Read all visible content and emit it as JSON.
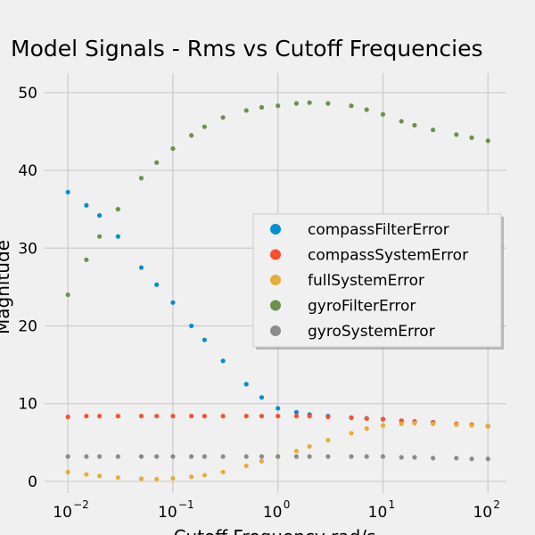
{
  "chart_data": {
    "type": "scatter",
    "title": "Model Signals - Rms vs Cutoff Frequencies",
    "xlabel": "Cutoff Frequency rad/s",
    "ylabel": "Magnitude",
    "x_scale": "log",
    "xlim": [
      0.006,
      150
    ],
    "ylim": [
      -1.5,
      52.5
    ],
    "x_ticks": [
      {
        "value": 0.01,
        "mantissa": "10",
        "exponent": "−2"
      },
      {
        "value": 0.1,
        "mantissa": "10",
        "exponent": "−1"
      },
      {
        "value": 1,
        "mantissa": "10",
        "exponent": "0"
      },
      {
        "value": 10,
        "mantissa": "10",
        "exponent": "1"
      },
      {
        "value": 100,
        "mantissa": "10",
        "exponent": "2"
      }
    ],
    "y_ticks": [
      "0",
      "10",
      "20",
      "30",
      "40",
      "50"
    ],
    "grid": true,
    "legend": "center-right",
    "series": [
      {
        "name": "compassFilterError",
        "color": "#008fd5",
        "x": [
          0.01,
          0.015,
          0.02,
          0.03,
          0.05,
          0.07,
          0.1,
          0.15,
          0.2,
          0.3,
          0.5,
          0.7,
          1,
          1.5,
          2,
          3,
          5,
          7,
          10,
          15,
          20,
          30,
          50,
          70,
          100
        ],
        "y": [
          37.2,
          35.5,
          34.2,
          31.5,
          27.5,
          25.3,
          23.0,
          20.0,
          18.2,
          15.5,
          12.5,
          10.8,
          9.4,
          8.9,
          8.6,
          8.4,
          8.2,
          8.1,
          8.0,
          7.8,
          7.7,
          7.6,
          7.4,
          7.3,
          7.1
        ]
      },
      {
        "name": "compassSystemError",
        "color": "#fc4f30",
        "x": [
          0.01,
          0.015,
          0.02,
          0.03,
          0.05,
          0.07,
          0.1,
          0.15,
          0.2,
          0.3,
          0.5,
          0.7,
          1,
          1.5,
          2,
          3,
          5,
          7,
          10,
          15,
          20,
          30,
          50,
          70,
          100
        ],
        "y": [
          8.3,
          8.4,
          8.4,
          8.4,
          8.4,
          8.4,
          8.4,
          8.4,
          8.4,
          8.4,
          8.4,
          8.4,
          8.4,
          8.4,
          8.4,
          8.3,
          8.2,
          8.1,
          8.0,
          7.8,
          7.7,
          7.6,
          7.4,
          7.3,
          7.1
        ]
      },
      {
        "name": "fullSystemError",
        "color": "#e5ae38",
        "x": [
          0.01,
          0.015,
          0.02,
          0.03,
          0.05,
          0.07,
          0.1,
          0.15,
          0.2,
          0.3,
          0.5,
          0.7,
          1,
          1.5,
          2,
          3,
          5,
          7,
          10,
          15,
          20,
          30,
          50,
          70,
          100
        ],
        "y": [
          1.2,
          0.9,
          0.7,
          0.5,
          0.35,
          0.3,
          0.4,
          0.6,
          0.8,
          1.2,
          2.0,
          2.6,
          3.2,
          3.9,
          4.5,
          5.3,
          6.2,
          6.8,
          7.2,
          7.4,
          7.5,
          7.4,
          7.3,
          7.2,
          7.1
        ]
      },
      {
        "name": "gyroFilterError",
        "color": "#6d904f",
        "x": [
          0.01,
          0.015,
          0.02,
          0.03,
          0.05,
          0.07,
          0.1,
          0.15,
          0.2,
          0.3,
          0.5,
          0.7,
          1,
          1.5,
          2,
          3,
          5,
          7,
          10,
          15,
          20,
          30,
          50,
          70,
          100
        ],
        "y": [
          24.0,
          28.5,
          31.5,
          35.0,
          39.0,
          41.0,
          42.8,
          44.5,
          45.6,
          46.8,
          47.7,
          48.1,
          48.3,
          48.6,
          48.7,
          48.6,
          48.3,
          47.8,
          47.2,
          46.3,
          45.8,
          45.2,
          44.6,
          44.2,
          43.8
        ]
      },
      {
        "name": "gyroSystemError",
        "color": "#8b8b8b",
        "x": [
          0.01,
          0.015,
          0.02,
          0.03,
          0.05,
          0.07,
          0.1,
          0.15,
          0.2,
          0.3,
          0.5,
          0.7,
          1,
          1.5,
          2,
          3,
          5,
          7,
          10,
          15,
          20,
          30,
          50,
          70,
          100
        ],
        "y": [
          3.2,
          3.2,
          3.2,
          3.2,
          3.2,
          3.2,
          3.2,
          3.2,
          3.2,
          3.2,
          3.2,
          3.2,
          3.2,
          3.2,
          3.2,
          3.2,
          3.2,
          3.2,
          3.2,
          3.1,
          3.1,
          3.0,
          3.0,
          2.9,
          2.9
        ]
      }
    ]
  }
}
